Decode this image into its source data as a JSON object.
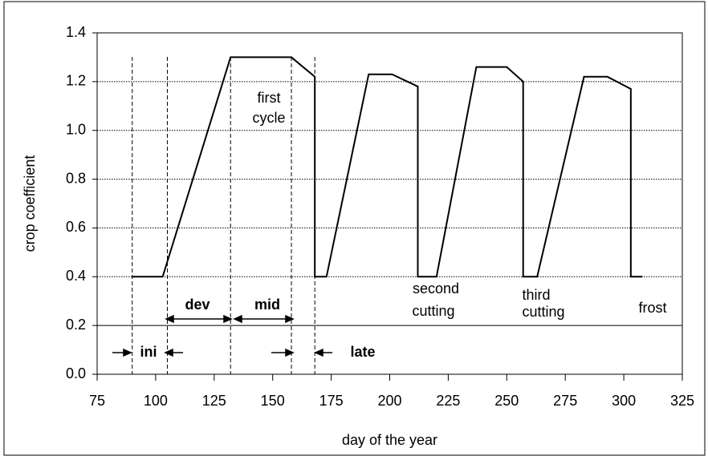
{
  "chart_data": {
    "type": "line",
    "xlabel": "day of the year",
    "ylabel": "crop coefficient",
    "x": [
      90,
      103,
      132,
      158,
      168,
      168,
      173,
      191,
      201,
      212,
      212,
      220,
      237,
      250,
      257,
      257,
      263,
      283,
      293,
      303,
      303,
      308
    ],
    "series": [
      {
        "color": "#000000",
        "values": [
          0.4,
          0.4,
          1.3,
          1.3,
          1.22,
          0.4,
          0.4,
          1.23,
          1.23,
          1.18,
          0.4,
          0.4,
          1.26,
          1.26,
          1.2,
          0.4,
          0.4,
          1.22,
          1.22,
          1.17,
          0.4,
          0.4
        ]
      }
    ],
    "xlim": [
      75,
      325
    ],
    "xticks": [
      75,
      100,
      125,
      150,
      175,
      200,
      225,
      250,
      275,
      300,
      325
    ],
    "ylim": [
      0,
      1.4
    ],
    "yticks": [
      {
        "value": 0,
        "label": "0.0"
      },
      0.2,
      0.4,
      0.6,
      0.8,
      {
        "value": 1,
        "label": "1.0"
      },
      1.2,
      1.4
    ],
    "grid": true,
    "stage_boundaries": [
      90,
      105,
      132,
      158,
      168
    ],
    "annotations": [
      "first",
      "cycle",
      "second",
      "cutting",
      "third",
      "cutting",
      "frost",
      "dev",
      "mid",
      "ini",
      "late"
    ]
  }
}
